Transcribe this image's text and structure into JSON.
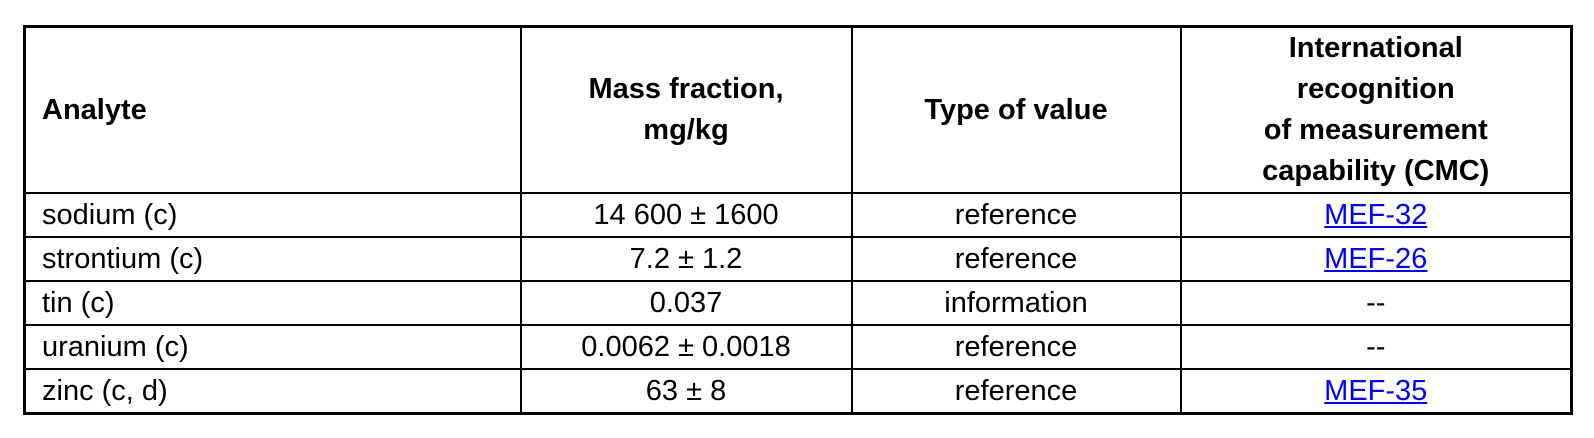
{
  "page": {
    "background_color": "#ffffff",
    "text_color": "#000000",
    "border_color": "#000000",
    "link_color": "#0000ff"
  },
  "table": {
    "headers": {
      "analyte": "Analyte",
      "mass_fraction": "Mass fraction,\nmg/kg",
      "type_of_value": "Type of value",
      "cmc": "International\nrecognition\nof measurement\ncapability (CMC)"
    },
    "rows": [
      {
        "analyte": "sodium (c)",
        "mass_fraction": "14 600 ± 1600",
        "type_of_value": "reference",
        "cmc": "MEF-32"
      },
      {
        "analyte": "strontium (c)",
        "mass_fraction": "7.2 ± 1.2",
        "type_of_value": "reference",
        "cmc": "MEF-26"
      },
      {
        "analyte": "tin (c)",
        "mass_fraction": "0.037",
        "type_of_value": "information",
        "cmc": "--"
      },
      {
        "analyte": "uranium (c)",
        "mass_fraction": "0.0062 ± 0.0018",
        "type_of_value": "reference",
        "cmc": "--"
      },
      {
        "analyte": "zinc (c, d)",
        "mass_fraction": "63 ± 8",
        "type_of_value": "reference",
        "cmc": "MEF-35"
      }
    ]
  }
}
